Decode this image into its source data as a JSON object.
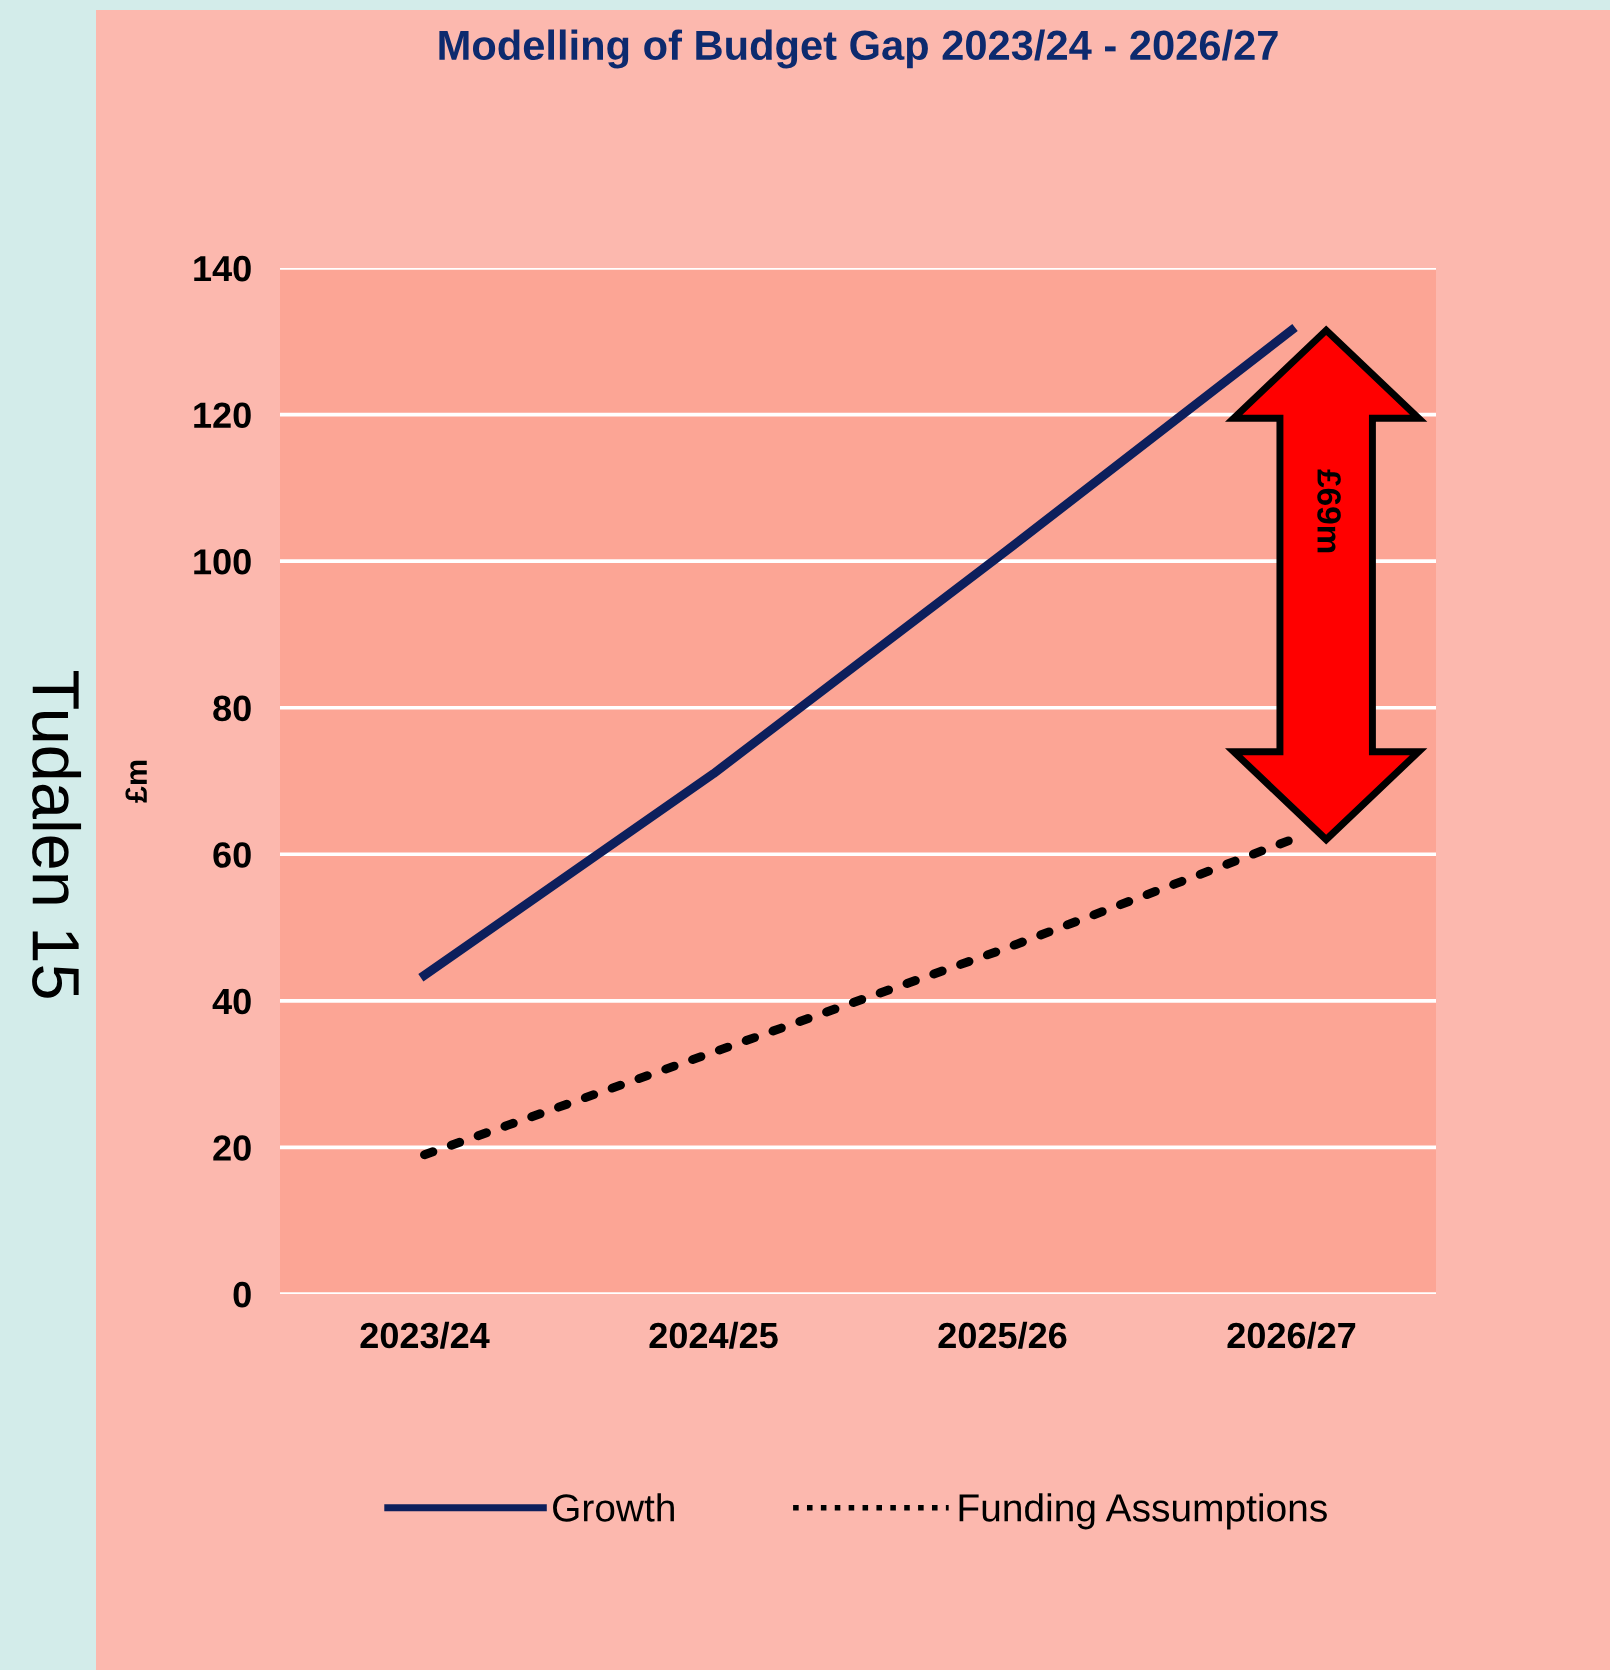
{
  "chart_data": {
    "type": "line",
    "title": "Modelling of Budget Gap 2023/24 - 2026/27",
    "ylabel": "£m",
    "categories": [
      "2023/24",
      "2024/25",
      "2025/26",
      "2026/27"
    ],
    "series": [
      {
        "name": "Growth",
        "color": "#0d1f5c",
        "values": [
          43.5,
          71,
          101,
          131.5
        ],
        "line_style": "solid"
      },
      {
        "name": "Funding Assumptions",
        "color": "#000000",
        "values": [
          19,
          33,
          47,
          62
        ],
        "line_style": "dotted"
      }
    ],
    "ylim": [
      0,
      140
    ],
    "yticks": [
      0,
      20,
      40,
      60,
      80,
      100,
      120,
      140
    ],
    "grid": "y",
    "legend": "bottom",
    "marker": "none",
    "annotations": [
      "£69m",
      "Tudalen 15"
    ]
  }
}
